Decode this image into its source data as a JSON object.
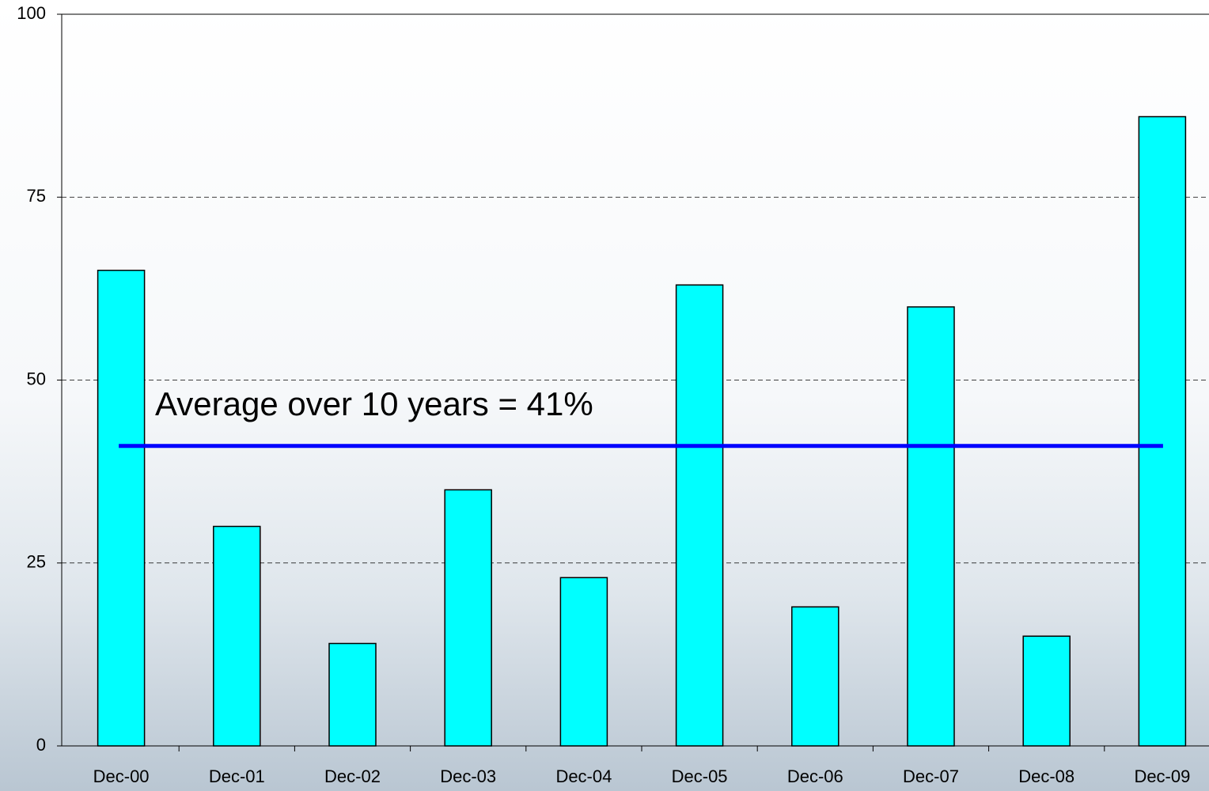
{
  "chart_data": {
    "type": "bar",
    "categories": [
      "Dec-00",
      "Dec-01",
      "Dec-02",
      "Dec-03",
      "Dec-04",
      "Dec-05",
      "Dec-06",
      "Dec-07",
      "Dec-08",
      "Dec-09"
    ],
    "values": [
      65,
      30,
      14,
      35,
      23,
      63,
      19,
      60,
      15,
      86
    ],
    "color": "#00ffff",
    "ylim": [
      0,
      100
    ],
    "yticks": [
      0,
      25,
      50,
      75,
      100
    ],
    "grid": true,
    "average": 41,
    "average_color": "#0000ff",
    "annotation": "Average over 10 years = 41%"
  }
}
